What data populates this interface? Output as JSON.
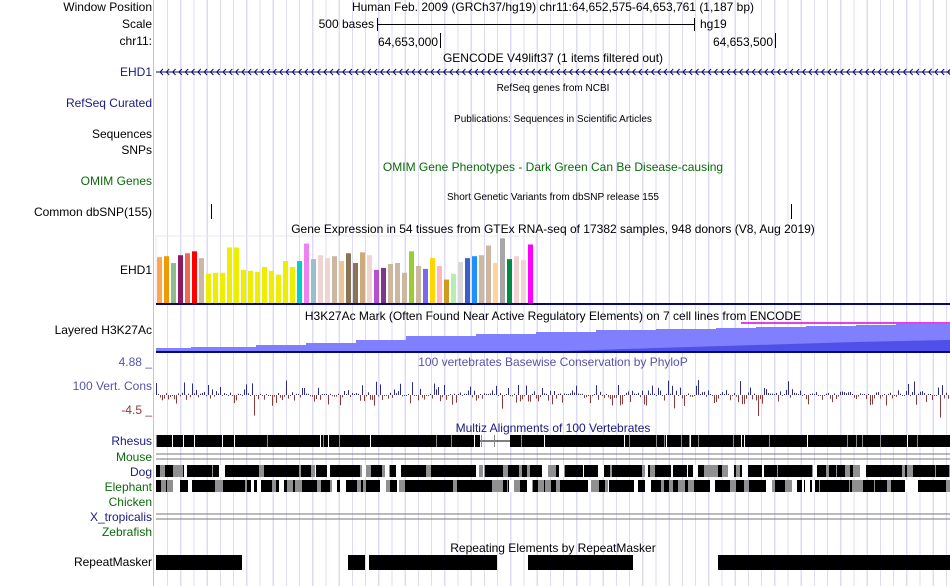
{
  "header": {
    "window_position_label": "Window Position",
    "scale_label": "Scale",
    "chr_label": "chr11:",
    "assembly_title": "Human Feb. 2009 (GRCh37/hg19)   chr11:64,652,575-64,653,761 (1,187 bp)",
    "scale_text": "500 bases",
    "scale_db": "hg19",
    "ticks": [
      "64,653,000",
      "64,653,500"
    ]
  },
  "tracks": {
    "gencode": {
      "title": "GENCODE V49lift37 (1 items filtered out)",
      "label": "EHD1"
    },
    "refseq": {
      "title": "RefSeq genes from NCBI",
      "label": "RefSeq Curated"
    },
    "publications": {
      "title": "Publications: Sequences in Scientific Articles",
      "label": "Sequences"
    },
    "snps_label": "SNPs",
    "omim": {
      "title": "OMIM Gene Phenotypes - Dark Green Can Be Disease-causing",
      "label": "OMIM Genes"
    },
    "dbsnp": {
      "title": "Short Genetic Variants from dbSNP release 155",
      "label": "Common dbSNP(155)"
    },
    "gtex": {
      "title": "Gene Expression in 54 tissues from GTEx RNA-seq of 17382 samples, 948 donors (V8, Aug 2019)",
      "label": "EHD1",
      "values": [
        141,
        144,
        123,
        147,
        153,
        159,
        138,
        90,
        93,
        93,
        171,
        171,
        102,
        99,
        96,
        111,
        99,
        87,
        129,
        111,
        129,
        183,
        135,
        147,
        138,
        144,
        129,
        153,
        123,
        156,
        147,
        102,
        108,
        120,
        123,
        93,
        159,
        114,
        105,
        138,
        114,
        72,
        90,
        126,
        138,
        144,
        147,
        177,
        123,
        199,
        135,
        144,
        132,
        180
      ],
      "colors": [
        "#FFA54F",
        "#EE9A00",
        "#8FBC8F",
        "#8B1C62",
        "#EE6A50",
        "#FF0000",
        "#CDB79E",
        "#EEEE00",
        "#EEEE00",
        "#EEEE00",
        "#EEEE00",
        "#EEEE00",
        "#EEEE00",
        "#EEEE00",
        "#EEEE00",
        "#EEEE00",
        "#EEEE00",
        "#EEEE00",
        "#EEEE00",
        "#EEEE00",
        "#00CDCD",
        "#EE82EE",
        "#9AC0CD",
        "#EED5D2",
        "#EED5D2",
        "#CDB79E",
        "#EEC591",
        "#8B7355",
        "#8B7355",
        "#CDAA7D",
        "#EED5D2",
        "#B452CD",
        "#7A378B",
        "#CDB79E",
        "#CDB79E",
        "#CDB79E",
        "#9ACD32",
        "#CDB79E",
        "#7B68EE",
        "#FFD700",
        "#FFB6C1",
        "#CD9B1D",
        "#B4EEB4",
        "#D9D9D9",
        "#3A5FCD",
        "#1E90FF",
        "#CDB79E",
        "#CDB79E",
        "#FFD39B",
        "#A6A6A6",
        "#008B45",
        "#EED5D2",
        "#EED5D2",
        "#FF00FF"
      ]
    },
    "h3k27ac": {
      "title": "H3K27Ac Mark (Often Found Near Active Regulatory Elements) on 7 cell lines from ENCODE",
      "label": "Layered H3K27Ac"
    },
    "phylop": {
      "title": "100 vertebrates Basewise Conservation by PhyloP",
      "label": "100 Vert. Cons",
      "max_label": "4.88 _",
      "min_label": "-4.5 _"
    },
    "multiz": {
      "title": "Multiz Alignments of 100 Vertebrates",
      "species": [
        "Rhesus",
        "Mouse",
        "Dog",
        "Elephant",
        "Chicken",
        "X_tropicalis",
        "Zebrafish"
      ]
    },
    "repeatmasker": {
      "title": "Repeating Elements by RepeatMasker",
      "label": "RepeatMasker"
    }
  },
  "colors": {
    "navy": "#0a0a6e",
    "h3k_light": "#8080ff",
    "h3k_dark": "#3a3ae0",
    "magenta": "#e000e0",
    "cons_pos": "#2a2a8a",
    "cons_neg": "#8b3a3a"
  }
}
